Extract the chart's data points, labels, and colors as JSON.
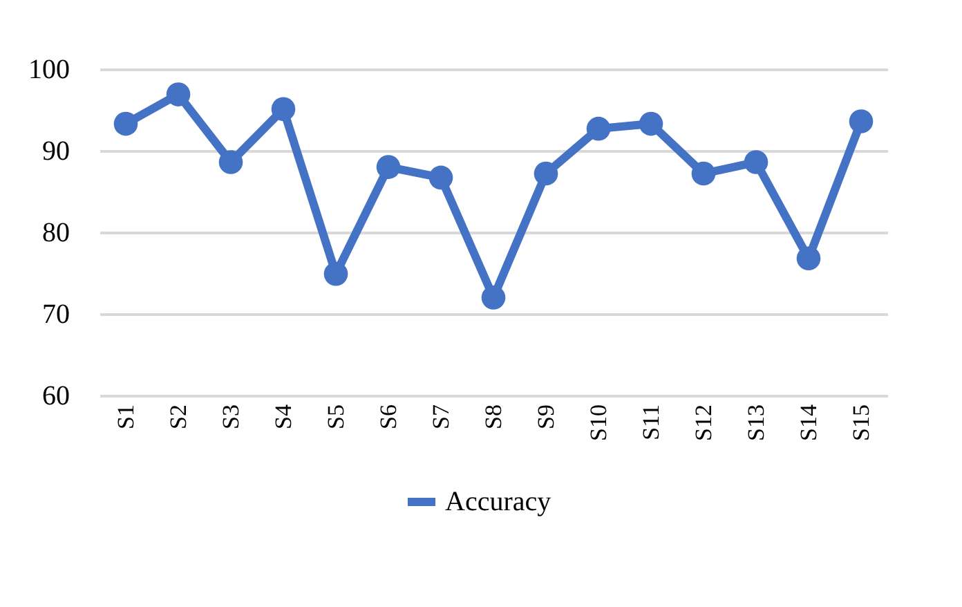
{
  "chart_data": {
    "type": "line",
    "categories": [
      "S1",
      "S2",
      "S3",
      "S4",
      "S5",
      "S6",
      "S7",
      "S8",
      "S9",
      "S10",
      "S11",
      "S12",
      "S13",
      "S14",
      "S15"
    ],
    "series": [
      {
        "name": "Accuracy",
        "color": "#4472c4",
        "values": [
          93.3,
          96.9,
          88.6,
          95.1,
          74.9,
          88.0,
          86.7,
          72.0,
          87.2,
          92.7,
          93.3,
          87.2,
          88.6,
          76.8,
          93.6
        ]
      }
    ],
    "ylim": [
      60,
      100
    ],
    "yticks": [
      60,
      70,
      80,
      90,
      100
    ],
    "grid": "y",
    "legend": "bottom",
    "marker": "circle",
    "line_style": "solid"
  }
}
